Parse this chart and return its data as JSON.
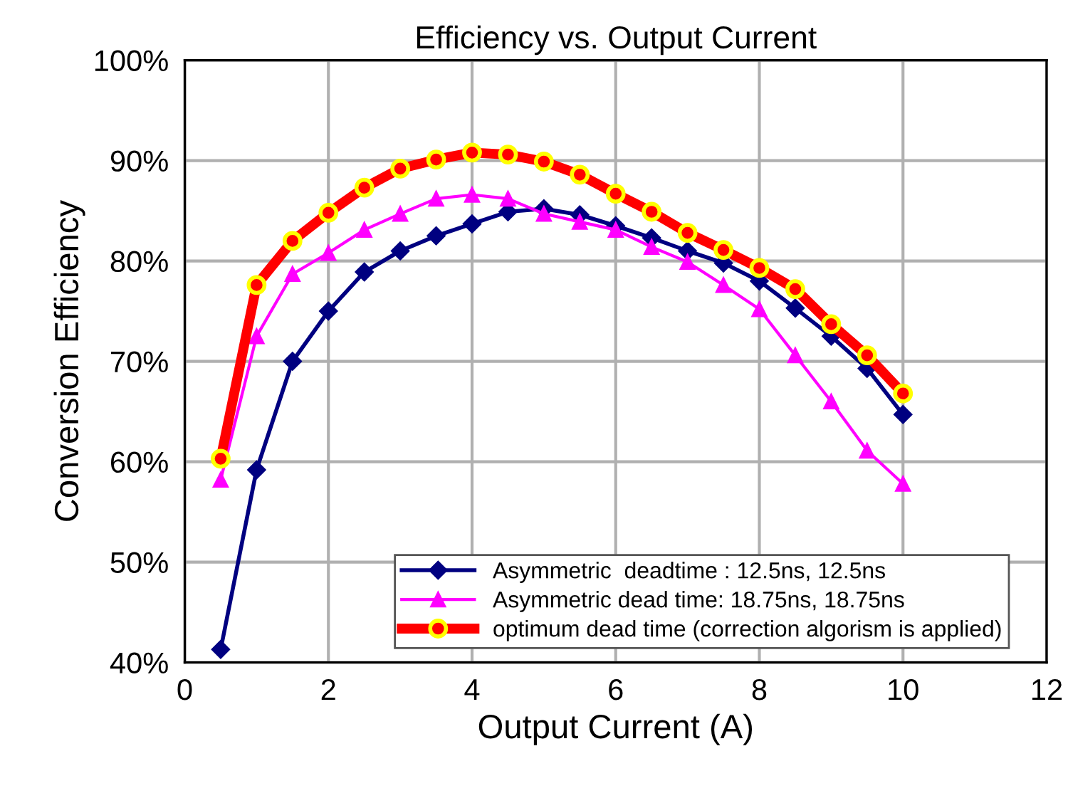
{
  "chart_data": {
    "type": "line",
    "title": "Efficiency vs. Output Current",
    "xlabel": "Output Current (A)",
    "ylabel": "Conversion Efficiency",
    "x": [
      0.5,
      1,
      1.5,
      2,
      2.5,
      3,
      3.5,
      4,
      4.5,
      5,
      5.5,
      6,
      6.5,
      7,
      7.5,
      8,
      8.5,
      9,
      9.5,
      10
    ],
    "series": [
      {
        "name": "Asymmetric  deadtime : 12.5ns, 12.5ns",
        "color": "#000080",
        "marker": "diamond",
        "values": [
          41.3,
          59.2,
          70,
          75,
          78.9,
          81,
          82.5,
          83.7,
          84.9,
          85.2,
          84.6,
          83.5,
          82.3,
          81,
          79.8,
          78,
          75.3,
          72.5,
          69.3,
          64.7
        ]
      },
      {
        "name": "Asymmetric dead time: 18.75ns, 18.75ns",
        "color": "#ff00ff",
        "marker": "triangle",
        "values": [
          58.2,
          72.5,
          78.7,
          80.8,
          83.1,
          84.7,
          86.2,
          86.6,
          86.2,
          84.7,
          83.9,
          83.1,
          81.4,
          79.9,
          77.6,
          75.2,
          70.6,
          66,
          61.1,
          57.8
        ]
      },
      {
        "name": "optimum dead time (correction algorism is applied)",
        "color": "#ff0000",
        "marker": "circle",
        "values": [
          60.3,
          77.6,
          82,
          84.8,
          87.3,
          89.2,
          90.1,
          90.8,
          90.6,
          89.9,
          88.6,
          86.7,
          84.9,
          82.8,
          81.1,
          79.3,
          77.2,
          73.7,
          70.6,
          66.8
        ]
      }
    ],
    "xlim": [
      0,
      12
    ],
    "xticks": [
      0,
      2,
      4,
      6,
      8,
      10,
      12
    ],
    "ylim": [
      40,
      100
    ],
    "yticks": [
      {
        "value": 40,
        "label": "40%"
      },
      {
        "value": 50,
        "label": "50%"
      },
      {
        "value": 60,
        "label": "60%"
      },
      {
        "value": 70,
        "label": "70%"
      },
      {
        "value": 80,
        "label": "80%"
      },
      {
        "value": 90,
        "label": "90%"
      },
      {
        "value": 100,
        "label": "100%"
      }
    ],
    "grid": true,
    "legend": "bottom",
    "line_style": "solid"
  }
}
